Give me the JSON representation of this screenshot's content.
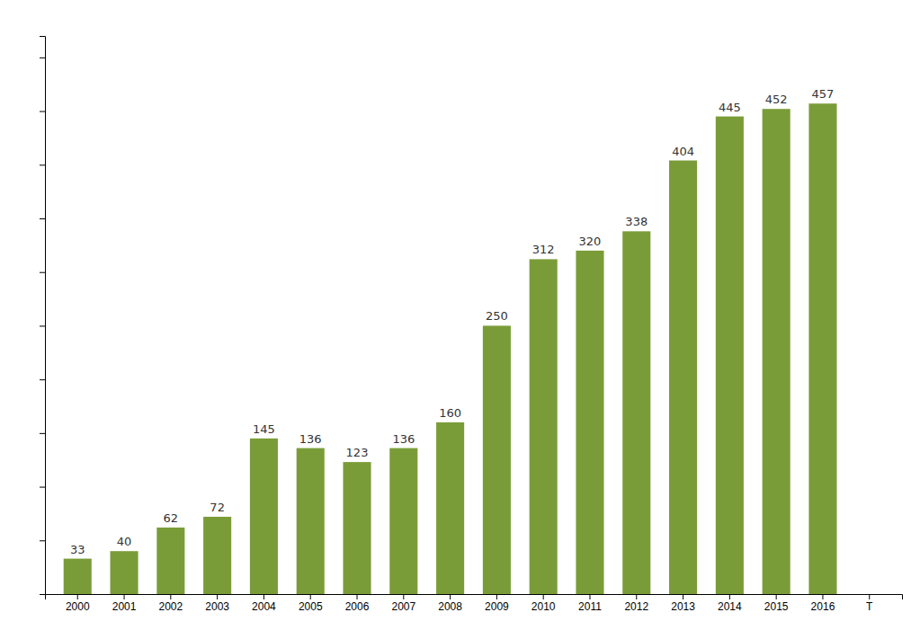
{
  "chart_data": {
    "type": "bar",
    "categories": [
      "2000",
      "2001",
      "2002",
      "2003",
      "2004",
      "2005",
      "2006",
      "2007",
      "2008",
      "2009",
      "2010",
      "2011",
      "2012",
      "2013",
      "2014",
      "2015",
      "2016",
      "T"
    ],
    "values": [
      33,
      40,
      62,
      72,
      145,
      136,
      123,
      136,
      160,
      250,
      312,
      320,
      338,
      404,
      445,
      452,
      457,
      null
    ],
    "color": "#7a9c38",
    "ylim": [
      0,
      520
    ],
    "yticks": [
      0,
      50,
      100,
      150,
      200,
      250,
      300,
      350,
      400,
      450,
      500
    ],
    "grid": false,
    "data_labels": true,
    "tick_labels": "x"
  }
}
